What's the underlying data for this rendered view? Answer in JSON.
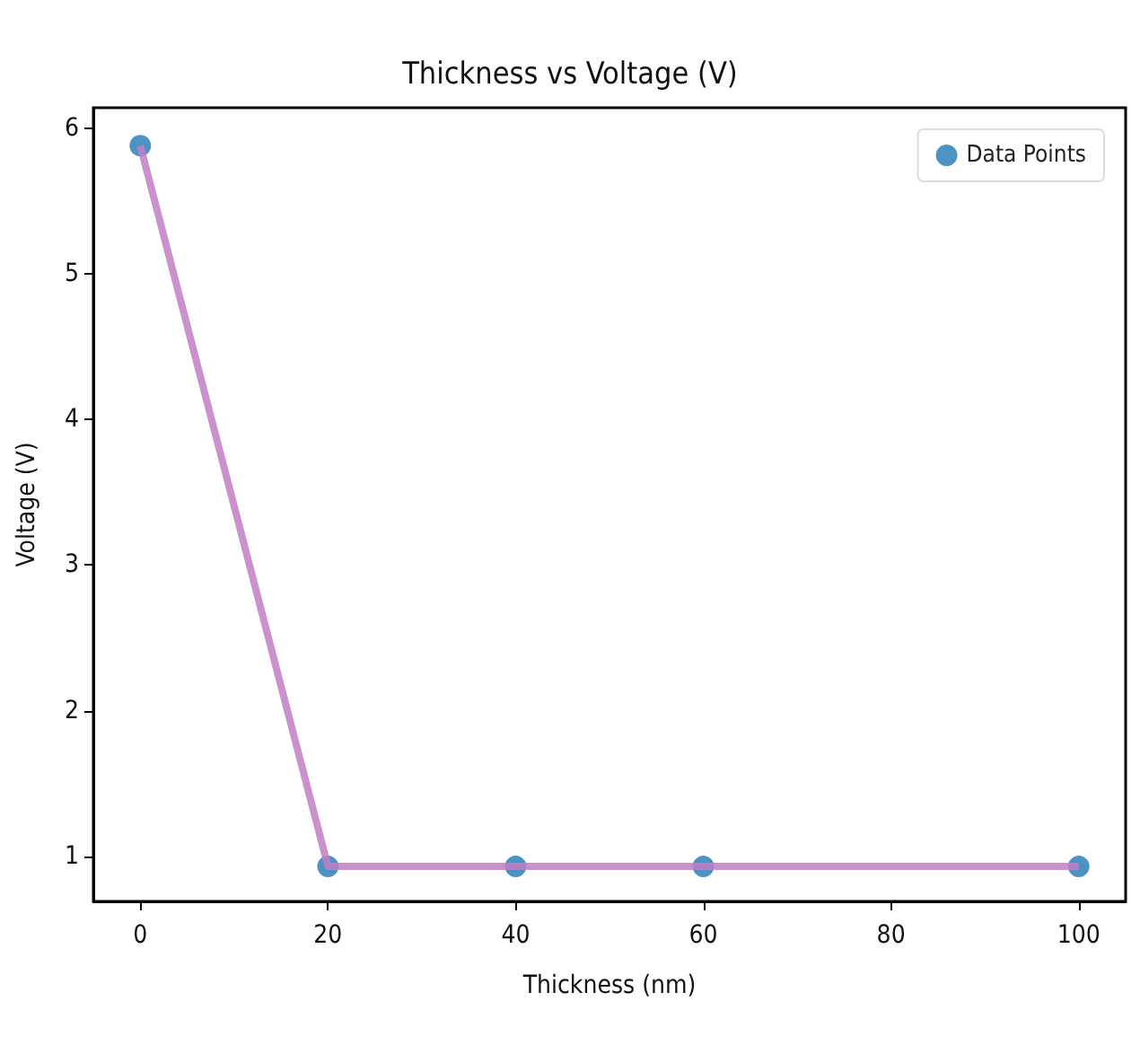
{
  "chart_data": {
    "type": "scatter",
    "title": "Thickness vs Voltage (V)",
    "xlabel": "Thickness (nm)",
    "ylabel": "Voltage (V)",
    "x": [
      0,
      20,
      40,
      60,
      100
    ],
    "series": [
      {
        "name": "Data Points",
        "color": "#1f77b4",
        "values": [
          5.88,
          0.93,
          0.93,
          0.93,
          0.93
        ]
      },
      {
        "type": "line",
        "marker": "none",
        "color": "#bf7fc4",
        "values": [
          5.88,
          0.93,
          0.93,
          0.93,
          0.93
        ]
      }
    ],
    "xlim": [
      -5,
      105
    ],
    "xticks": [
      0,
      20,
      40,
      60,
      80,
      100
    ],
    "ylim": [
      0.69,
      6.14
    ],
    "yticks": [
      1,
      2,
      3,
      4,
      5,
      6
    ],
    "grid": false,
    "legend": "top right",
    "marker": "circle",
    "line_style": "solid"
  }
}
